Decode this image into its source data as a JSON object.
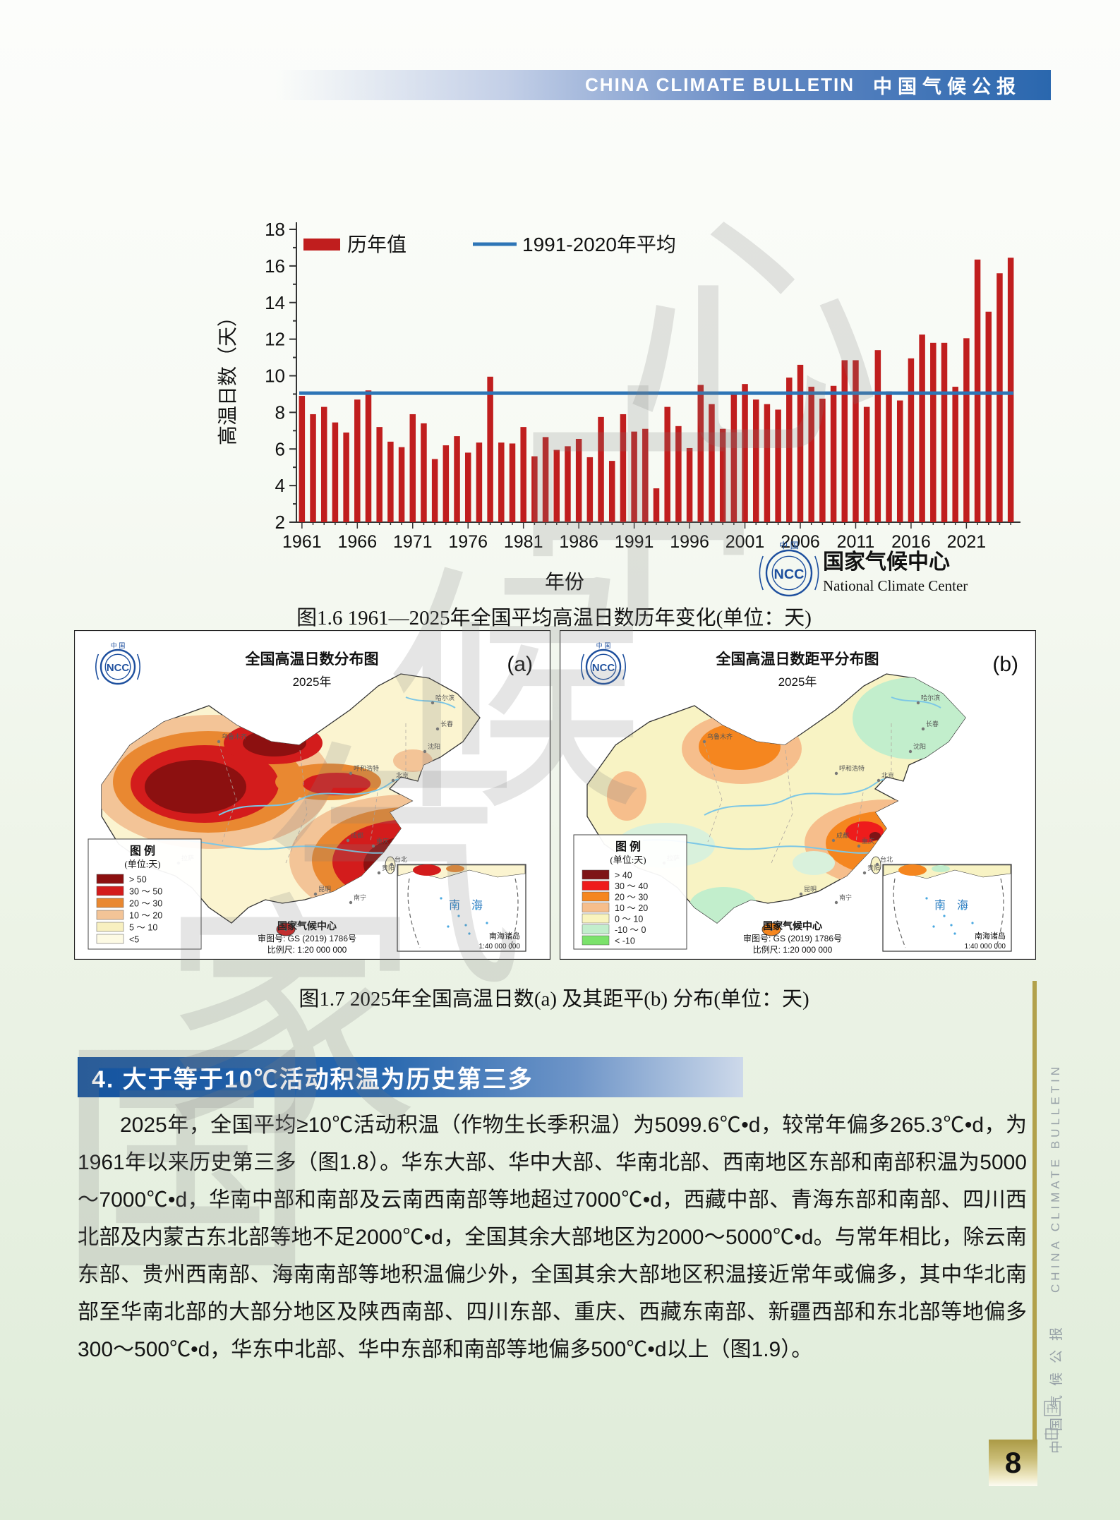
{
  "page": {
    "number": "8"
  },
  "header": {
    "title_en": "CHINA CLIMATE BULLETIN",
    "title_zh": "中国气候公报"
  },
  "watermark": {
    "text": "国家气候中心"
  },
  "sidebar": {
    "vertical_text_zh": "中国气候公报",
    "vertical_text_en": "CHINA CLIMATE BULLETIN"
  },
  "chart_data": {
    "type": "bar",
    "title": "1961—2025年全国平均高温日数历年变化",
    "years": [
      1961,
      1962,
      1963,
      1964,
      1965,
      1966,
      1967,
      1968,
      1969,
      1970,
      1971,
      1972,
      1973,
      1974,
      1975,
      1976,
      1977,
      1978,
      1979,
      1980,
      1981,
      1982,
      1983,
      1984,
      1985,
      1986,
      1987,
      1988,
      1989,
      1990,
      1991,
      1992,
      1993,
      1994,
      1995,
      1996,
      1997,
      1998,
      1999,
      2000,
      2001,
      2002,
      2003,
      2004,
      2005,
      2006,
      2007,
      2008,
      2009,
      2010,
      2011,
      2012,
      2013,
      2014,
      2015,
      2016,
      2017,
      2018,
      2019,
      2020,
      2021,
      2022,
      2023,
      2024,
      2025
    ],
    "values": [
      8.9,
      7.9,
      8.3,
      7.45,
      6.9,
      8.7,
      9.2,
      7.2,
      6.4,
      6.1,
      7.9,
      7.4,
      5.45,
      6.2,
      6.7,
      5.8,
      6.35,
      9.95,
      6.35,
      6.3,
      7.2,
      5.6,
      6.65,
      5.95,
      6.15,
      6.55,
      5.55,
      7.75,
      5.35,
      7.9,
      6.95,
      7.1,
      3.85,
      8.3,
      7.25,
      6.05,
      9.5,
      8.45,
      7.1,
      9.05,
      9.55,
      8.7,
      8.45,
      8.15,
      9.9,
      10.6,
      9.4,
      8.75,
      9.45,
      10.85,
      10.85,
      8.3,
      11.4,
      9.15,
      8.65,
      10.95,
      12.25,
      11.8,
      11.8,
      9.4,
      12.05,
      16.35,
      13.5,
      15.6,
      16.45
    ],
    "series_label": "历年值",
    "bar_color": "#C01E1E",
    "average_label": "1991-2020年平均",
    "average_value": 9.05,
    "average_color": "#2E75B6",
    "xlabel": "年份",
    "ylabel": "高温日数（天）",
    "ylim": [
      2,
      18
    ],
    "ytick_step": 2,
    "xticks": [
      1961,
      1966,
      1971,
      1976,
      1981,
      1986,
      1991,
      1996,
      2001,
      2006,
      2011,
      2016,
      2021
    ],
    "legend_position": "top-left",
    "grid": false
  },
  "fig16": {
    "caption": "图1.6  1961—2025年全国平均高温日数历年变化(单位：天)",
    "logo": {
      "zh": "国家气候中心",
      "en": "National Climate Center"
    }
  },
  "fig17": {
    "caption": "图1.7  2025年全国高温日数(a) 及其距平(b) 分布(单位：天)"
  },
  "maps": {
    "a": {
      "panel_label": "(a)",
      "title": "全国高温日数分布图",
      "subtitle": "2025年",
      "legend_title": "图 例",
      "legend_unit": "(单位:天)",
      "base_color": "#FBF4D0",
      "hainan_color": "#D31C1C",
      "legend": [
        {
          "label": "> 50",
          "color": "#8C1010"
        },
        {
          "label": "30 ～ 50",
          "color": "#D31C1C"
        },
        {
          "label": "20 ～ 30",
          "color": "#E98831"
        },
        {
          "label": "10 ～ 20",
          "color": "#F3C497"
        },
        {
          "label": "5 ～ 10",
          "color": "#F8F0C0"
        },
        {
          "label": "<5",
          "color": "#FDFAE4"
        }
      ]
    },
    "b": {
      "panel_label": "(b)",
      "title": "全国高温日数距平分布图",
      "subtitle": "2025年",
      "legend_title": "图 例",
      "legend_unit": "(单位:天)",
      "base_color": "#F8F3C4",
      "hainan_color": "#F5861F",
      "legend": [
        {
          "label": "> 40",
          "color": "#7E1416"
        },
        {
          "label": "30 ～ 40",
          "color": "#EE1C1C"
        },
        {
          "label": "20 ～ 30",
          "color": "#F5861F"
        },
        {
          "label": "10 ～ 20",
          "color": "#F6BE8C"
        },
        {
          "label": "0 ～ 10",
          "color": "#F9F4BE"
        },
        {
          "label": "-10 ～ 0",
          "color": "#C2EECC"
        },
        {
          "label": "< -10",
          "color": "#7BE26B"
        }
      ]
    },
    "credits": {
      "line1": "国家气候中心",
      "line2": "审图号: GS (2019) 1786号",
      "line3": "比例尺: 1:20 000 000"
    },
    "inset": {
      "sea_label": "南 海",
      "caption_line1": "南海诸岛",
      "caption_line2": "1:40 000 000"
    },
    "cities": [
      "乌鲁木齐",
      "哈尔滨",
      "长春",
      "沈阳",
      "北京",
      "呼和浩特",
      "拉萨",
      "成都",
      "重庆",
      "贵阳",
      "昆明",
      "南宁",
      "台北",
      "海口"
    ]
  },
  "section": {
    "heading": "4. 大于等于10℃活动积温为历史第三多"
  },
  "body": {
    "paragraph": "2025年，全国平均≥10℃活动积温（作物生长季积温）为5099.6℃•d，较常年偏多265.3℃•d，为1961年以来历史第三多（图1.8）。华东大部、华中大部、华南北部、西南地区东部和南部积温为5000～7000℃•d，华南中部和南部及云南西南部等地超过7000℃•d，西藏中部、青海东部和南部、四川西北部及内蒙古东北部等地不足2000℃•d，全国其余大部地区为2000～5000℃•d。与常年相比，除云南东部、贵州西南部、海南南部等地积温偏少外，全国其余大部地区积温接近常年或偏多，其中华北南部至华南北部的大部分地区及陕西南部、四川东部、重庆、西藏东南部、新疆西部和东北部等地偏多300～500℃•d，华东中北部、华中东部和南部等地偏多500℃•d以上（图1.9）。"
  }
}
